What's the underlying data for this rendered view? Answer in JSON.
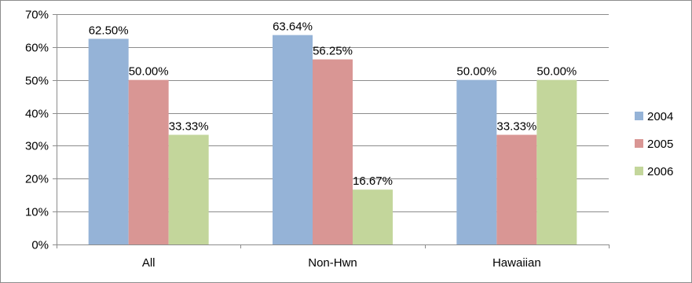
{
  "chart_data": {
    "type": "bar",
    "categories": [
      "All",
      "Non-Hwn",
      "Hawaiian"
    ],
    "series": [
      {
        "name": "2004",
        "color": "#95B3D7",
        "values": [
          62.5,
          63.64,
          50.0
        ],
        "labels": [
          "62.50%",
          "63.64%",
          "50.00%"
        ]
      },
      {
        "name": "2005",
        "color": "#D99694",
        "values": [
          50.0,
          56.25,
          33.33
        ],
        "labels": [
          "50.00%",
          "56.25%",
          "33.33%"
        ]
      },
      {
        "name": "2006",
        "color": "#C3D69B",
        "values": [
          33.33,
          16.67,
          50.0
        ],
        "labels": [
          "33.33%",
          "16.67%",
          "50.00%"
        ]
      }
    ],
    "ylim": [
      0,
      70
    ],
    "yticks": [
      0,
      10,
      20,
      30,
      40,
      50,
      60,
      70
    ],
    "ytick_labels": [
      "0%",
      "10%",
      "20%",
      "30%",
      "40%",
      "50%",
      "60%",
      "70%"
    ],
    "grid": true,
    "legend_position": "right",
    "title": "",
    "xlabel": "",
    "ylabel": ""
  }
}
